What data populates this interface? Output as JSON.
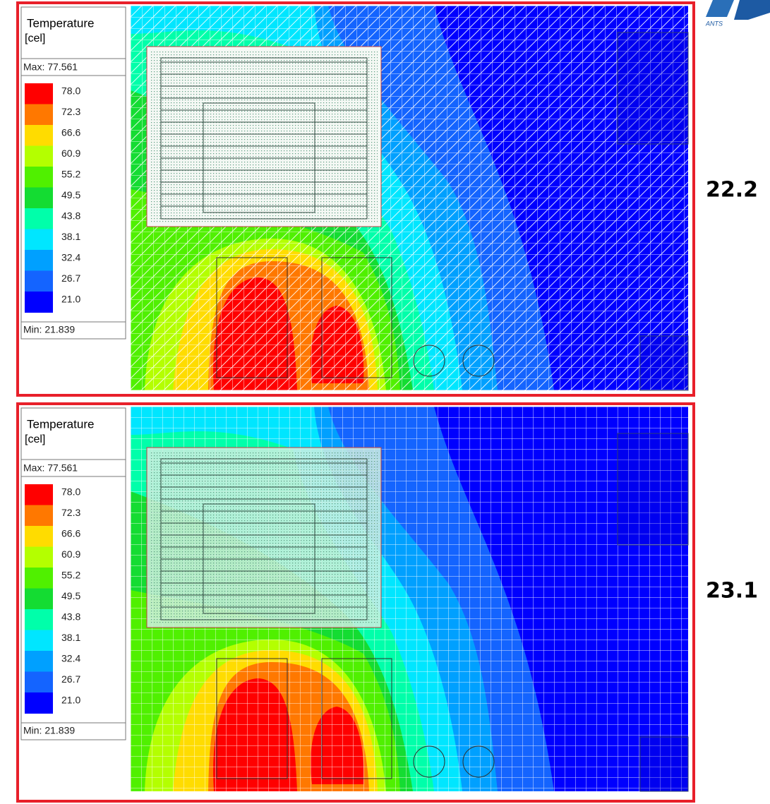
{
  "logo": {
    "text": "ANTS"
  },
  "panels": [
    {
      "label": "22.2",
      "legend": {
        "title": "Temperature",
        "unit": "[cel]",
        "max": "Max: 77.561",
        "min": "Min: 21.839",
        "levels": [
          {
            "value": "78.0",
            "color": "#ff0000"
          },
          {
            "value": "72.3",
            "color": "#ff7800"
          },
          {
            "value": "66.6",
            "color": "#ffdc00"
          },
          {
            "value": "60.9",
            "color": "#b4ff00"
          },
          {
            "value": "55.2",
            "color": "#50f000"
          },
          {
            "value": "49.5",
            "color": "#14dc32"
          },
          {
            "value": "43.8",
            "color": "#00ffaa"
          },
          {
            "value": "38.1",
            "color": "#00e6ff"
          },
          {
            "value": "32.4",
            "color": "#00a0ff"
          },
          {
            "value": "26.7",
            "color": "#1464ff"
          },
          {
            "value": "21.0",
            "color": "#0000ff"
          }
        ]
      }
    },
    {
      "label": "23.1",
      "legend": {
        "title": "Temperature",
        "unit": "[cel]",
        "max": "Max: 77.561",
        "min": "Min: 21.839",
        "levels": [
          {
            "value": "78.0",
            "color": "#ff0000"
          },
          {
            "value": "72.3",
            "color": "#ff7800"
          },
          {
            "value": "66.6",
            "color": "#ffdc00"
          },
          {
            "value": "60.9",
            "color": "#b4ff00"
          },
          {
            "value": "55.2",
            "color": "#50f000"
          },
          {
            "value": "49.5",
            "color": "#14dc32"
          },
          {
            "value": "43.8",
            "color": "#00ffaa"
          },
          {
            "value": "38.1",
            "color": "#00e6ff"
          },
          {
            "value": "32.4",
            "color": "#00a0ff"
          },
          {
            "value": "26.7",
            "color": "#1464ff"
          },
          {
            "value": "21.0",
            "color": "#0000ff"
          }
        ]
      }
    }
  ]
}
